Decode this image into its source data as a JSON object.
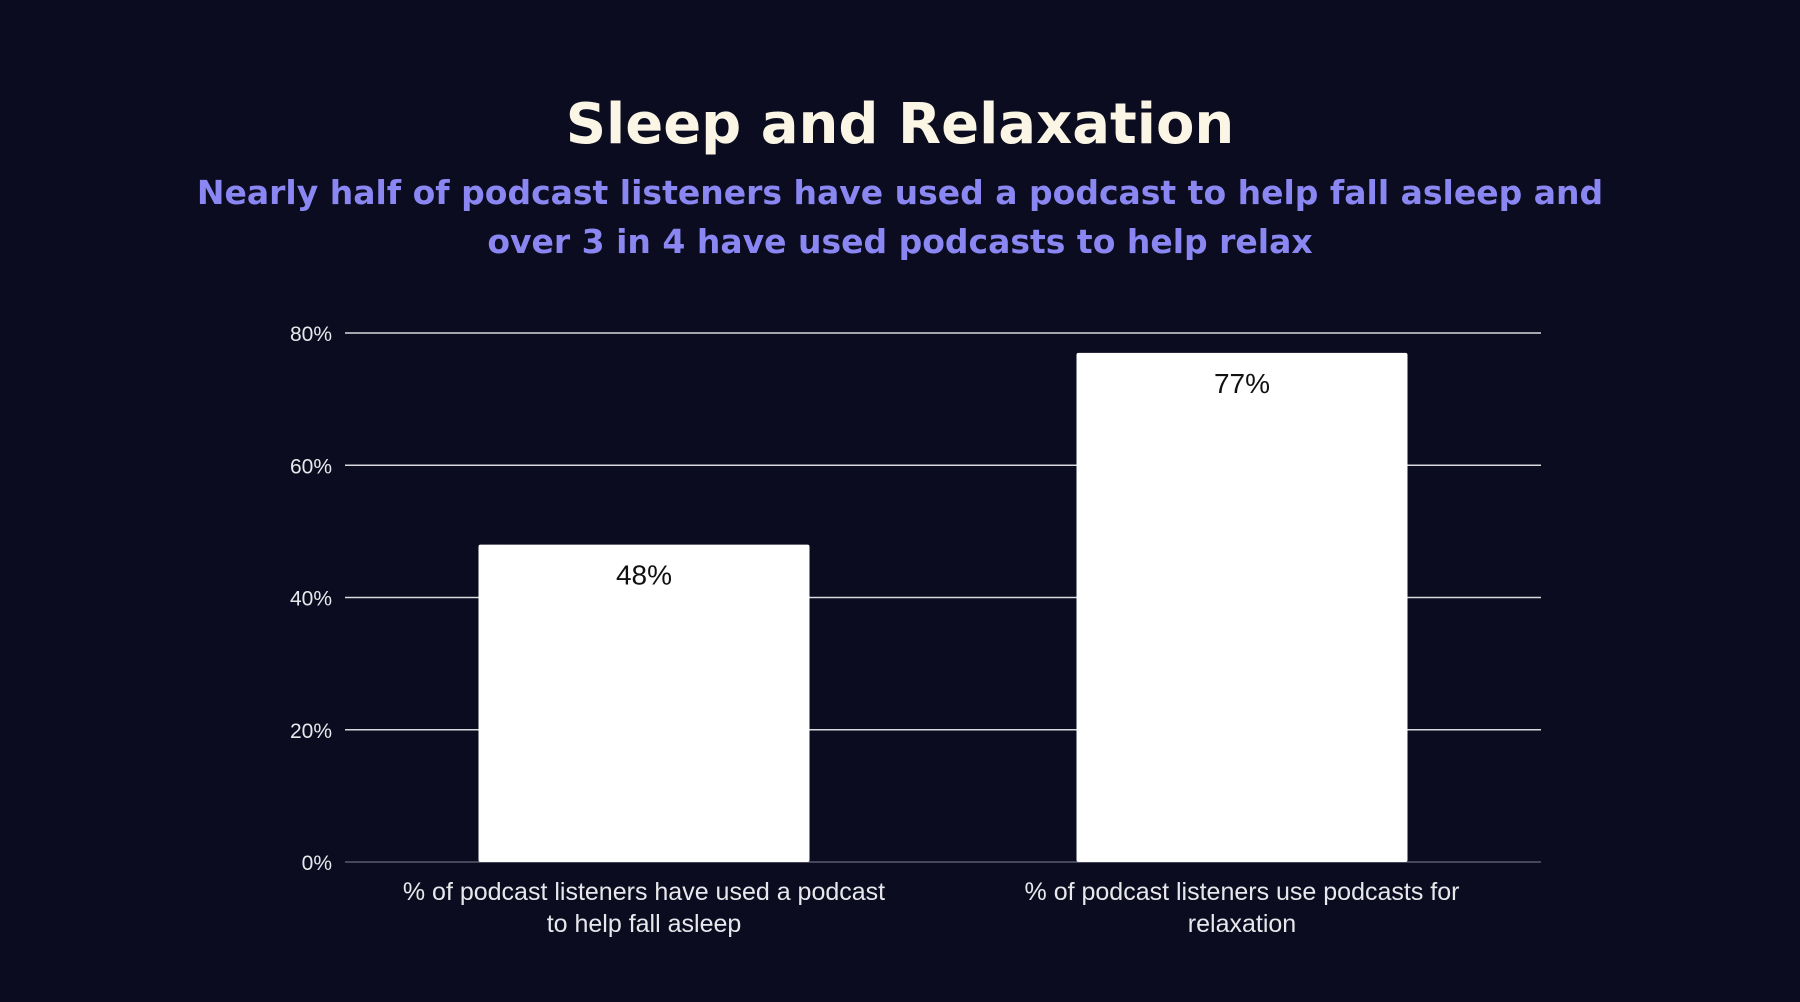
{
  "header": {
    "title": "Sleep and Relaxation",
    "subtitle": "Nearly half of podcast listeners have used a podcast to help fall asleep and over 3 in 4 have used podcasts to help relax"
  },
  "colors": {
    "background": "#0b0c20",
    "title": "#fbf5e6",
    "subtitle": "#8b87f2",
    "bar": "#ffffff",
    "gridline": "#d9d9de",
    "axis_text": "#e8e8ec",
    "data_label": "#111111"
  },
  "chart_data": {
    "type": "bar",
    "title": "Sleep and Relaxation",
    "subtitle": "Nearly half of podcast listeners have used a podcast to help fall asleep and over 3 in 4 have used podcasts to help relax",
    "categories": [
      [
        "% of podcast listeners have used a podcast",
        "to help fall asleep"
      ],
      [
        "% of podcast listeners use podcasts for",
        "relaxation"
      ]
    ],
    "values": [
      48,
      77
    ],
    "data_labels": [
      "48%",
      "77%"
    ],
    "ylim": [
      0,
      80
    ],
    "yticks": [
      0,
      20,
      40,
      60,
      80
    ],
    "ytick_labels": [
      "0%",
      "20%",
      "40%",
      "60%",
      "80%"
    ],
    "xlabel": "",
    "ylabel": "",
    "grid": "horizontal",
    "legend": "none"
  }
}
